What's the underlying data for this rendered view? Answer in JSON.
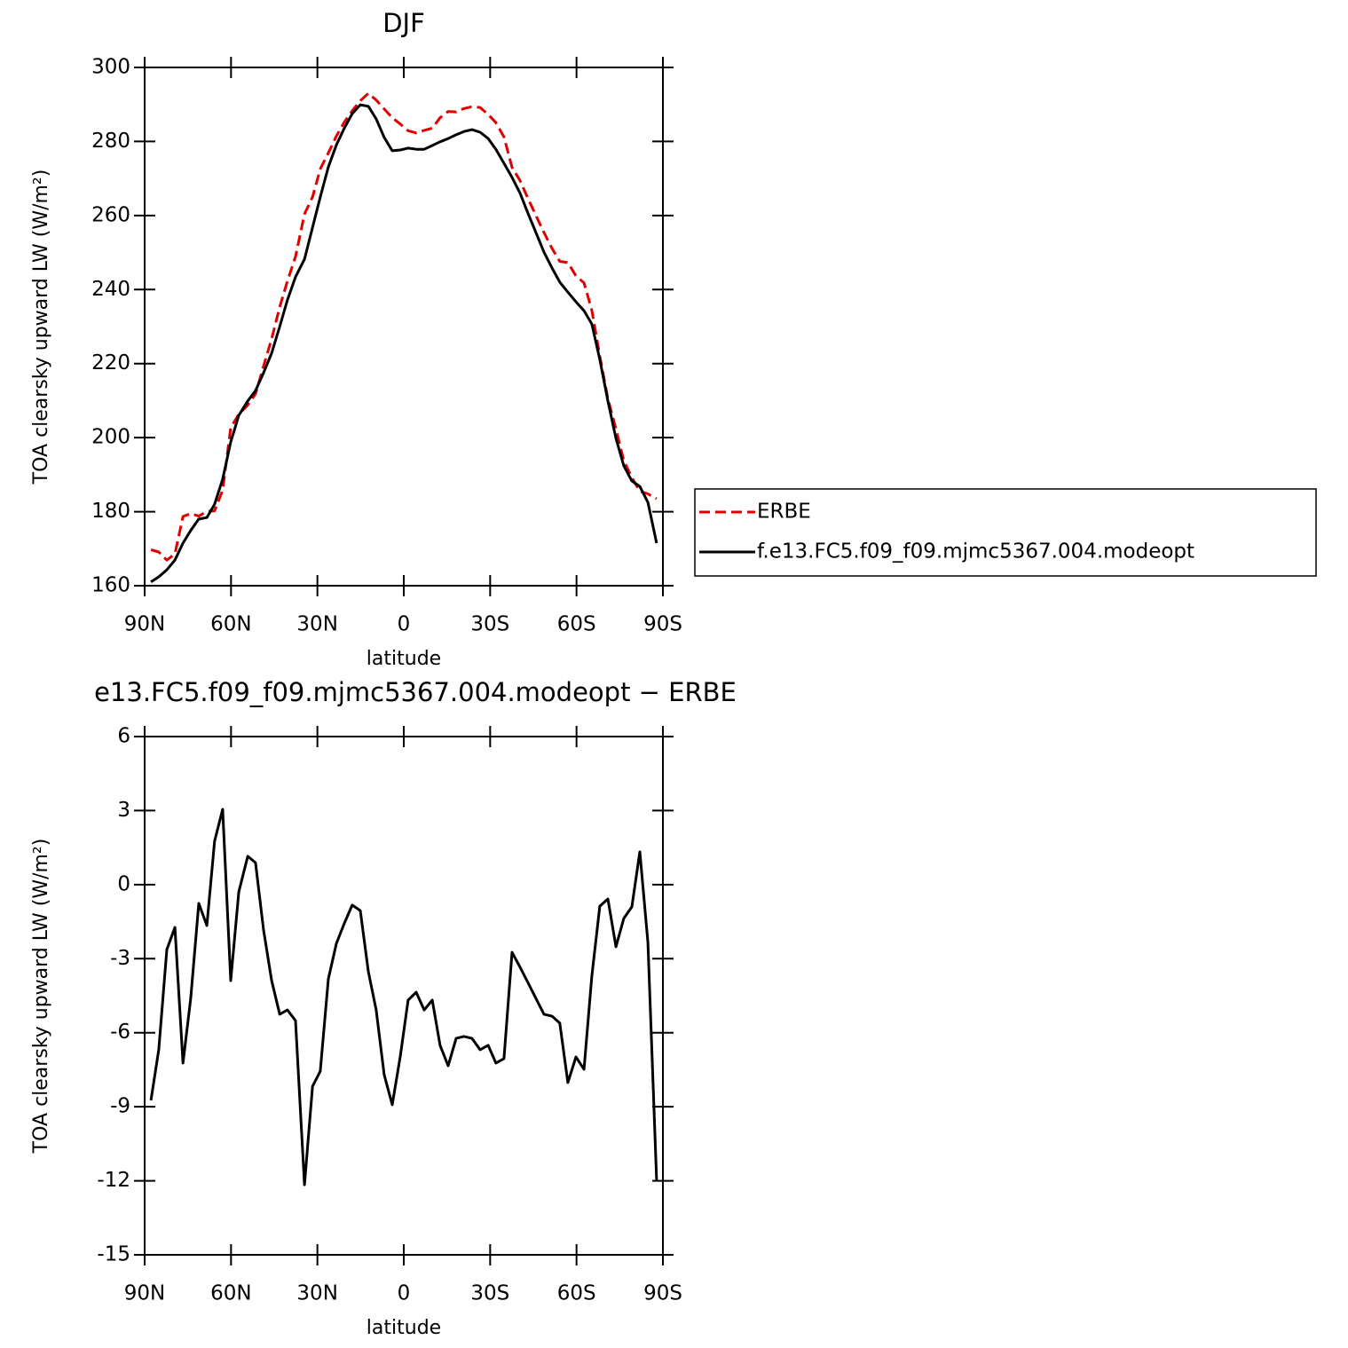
{
  "chart_data": [
    {
      "type": "line",
      "title": "DJF",
      "xlabel": "latitude",
      "ylabel": "TOA clearsky upward LW (W/m²)",
      "x": [
        87.8,
        85.1,
        82.3,
        79.5,
        76.7,
        74.0,
        71.2,
        68.4,
        65.7,
        62.9,
        60.1,
        57.3,
        54.2,
        51.5,
        48.7,
        45.9,
        43.1,
        40.4,
        37.6,
        34.5,
        31.7,
        29.0,
        26.2,
        23.4,
        20.6,
        17.9,
        15.1,
        12.3,
        9.6,
        6.8,
        4.0,
        1.2,
        -1.5,
        -4.3,
        -7.1,
        -9.9,
        -12.6,
        -15.4,
        -18.2,
        -20.9,
        -23.7,
        -26.5,
        -29.3,
        -32.0,
        -34.8,
        -37.6,
        -40.4,
        -43.1,
        -45.9,
        -48.7,
        -51.5,
        -54.2,
        -57.0,
        -59.8,
        -62.6,
        -65.3,
        -68.1,
        -70.9,
        -73.7,
        -76.4,
        -79.2,
        -82.0,
        -84.8,
        -87.8
      ],
      "series": [
        {
          "name": "ERBE",
          "color": "#e00000",
          "line_style": "dashed",
          "values": [
            169.7,
            169.1,
            166.9,
            168.6,
            178.7,
            179.5,
            178.8,
            180.1,
            180.2,
            185.8,
            202.7,
            206.3,
            208.8,
            211.8,
            219.3,
            226.7,
            235.3,
            242.3,
            248.9,
            260.4,
            265.0,
            272.6,
            276.9,
            281.5,
            285.3,
            288.3,
            291.0,
            293.0,
            291.2,
            288.8,
            286.4,
            284.7,
            282.9,
            282.3,
            283.0,
            283.6,
            286.4,
            288.1,
            288.0,
            288.9,
            289.4,
            289.2,
            287.3,
            285.1,
            281.2,
            273.0,
            269.4,
            264.7,
            260.0,
            255.4,
            251.1,
            247.6,
            247.3,
            243.7,
            241.8,
            234.4,
            222.0,
            210.5,
            202.3,
            193.8,
            189.2,
            185.5,
            184.8,
            183.5
          ]
        },
        {
          "name": "f.e13.FC5.f09_f09.mjmc5367.004.modeopt",
          "color": "#000000",
          "line_style": "solid",
          "values": [
            161.0,
            162.4,
            164.3,
            166.9,
            171.5,
            174.9,
            178.0,
            178.4,
            182.0,
            188.8,
            198.8,
            206.0,
            209.9,
            212.7,
            217.5,
            222.8,
            230.0,
            237.2,
            243.4,
            248.2,
            256.8,
            265.0,
            273.1,
            279.1,
            283.7,
            287.5,
            289.9,
            289.5,
            286.1,
            281.1,
            277.5,
            277.7,
            278.2,
            277.9,
            277.9,
            278.9,
            279.9,
            280.8,
            281.8,
            282.7,
            283.2,
            282.5,
            280.8,
            277.9,
            274.1,
            270.3,
            266.0,
            260.7,
            255.4,
            250.1,
            245.8,
            242.0,
            239.3,
            236.7,
            234.3,
            230.7,
            221.1,
            209.9,
            199.8,
            192.4,
            188.3,
            186.8,
            182.5,
            171.5
          ]
        }
      ],
      "xlim": [
        90,
        -90
      ],
      "xticks": [
        {
          "value": 90,
          "label": "90N"
        },
        {
          "value": 60,
          "label": "60N"
        },
        {
          "value": 30,
          "label": "30N"
        },
        0,
        {
          "value": -30,
          "label": "30S"
        },
        {
          "value": -60,
          "label": "60S"
        },
        {
          "value": -90,
          "label": "90S"
        }
      ],
      "ylim": [
        160,
        300
      ],
      "yticks": [
        160,
        180,
        200,
        220,
        240,
        260,
        280,
        300
      ],
      "legend": "right"
    },
    {
      "type": "line",
      "title": "e13.FC5.f09_f09.mjmc5367.004.modeopt − ERBE",
      "xlabel": "latitude",
      "ylabel": "TOA clearsky upward LW (W/m²)",
      "x": [
        87.8,
        85.1,
        82.3,
        79.5,
        76.7,
        74.0,
        71.2,
        68.4,
        65.7,
        62.9,
        60.1,
        57.3,
        54.2,
        51.5,
        48.7,
        45.9,
        43.1,
        40.4,
        37.6,
        34.5,
        31.7,
        29.0,
        26.2,
        23.4,
        20.6,
        17.9,
        15.1,
        12.3,
        9.6,
        6.8,
        4.0,
        1.2,
        -1.5,
        -4.3,
        -7.1,
        -9.9,
        -12.6,
        -15.4,
        -18.2,
        -20.9,
        -23.7,
        -26.5,
        -29.3,
        -32.0,
        -34.8,
        -37.6,
        -40.4,
        -43.1,
        -45.9,
        -48.7,
        -51.5,
        -54.2,
        -57.0,
        -59.8,
        -62.6,
        -65.3,
        -68.1,
        -70.9,
        -73.7,
        -76.4,
        -79.2,
        -82.0,
        -84.8,
        -87.8
      ],
      "color": "#000000",
      "values": [
        -8.74,
        -6.69,
        -2.63,
        -1.73,
        -7.23,
        -4.61,
        -0.76,
        -1.66,
        1.76,
        3.05,
        -3.89,
        -0.29,
        1.15,
        0.89,
        -1.84,
        -3.89,
        -5.25,
        -5.08,
        -5.51,
        -12.16,
        -8.17,
        -7.56,
        -3.82,
        -2.38,
        -1.55,
        -0.83,
        -1.05,
        -3.53,
        -5.08,
        -7.7,
        -8.92,
        -6.95,
        -4.68,
        -4.36,
        -5.08,
        -4.68,
        -6.51,
        -7.34,
        -6.23,
        -6.15,
        -6.23,
        -6.69,
        -6.51,
        -7.23,
        -7.05,
        -2.74,
        -3.35,
        -3.96,
        -4.61,
        -5.25,
        -5.33,
        -5.61,
        -8.02,
        -6.98,
        -7.48,
        -3.71,
        -0.87,
        -0.58,
        -2.52,
        -1.37,
        -0.9,
        1.33,
        -2.34,
        -11.98
      ],
      "xlim": [
        90,
        -90
      ],
      "xticks": [
        {
          "value": 90,
          "label": "90N"
        },
        {
          "value": 60,
          "label": "60N"
        },
        {
          "value": 30,
          "label": "30N"
        },
        0,
        {
          "value": -30,
          "label": "30S"
        },
        {
          "value": -60,
          "label": "60S"
        },
        {
          "value": -90,
          "label": "90S"
        }
      ],
      "ylim": [
        -15,
        6
      ],
      "yticks": [
        -15,
        -12,
        -9,
        -6,
        -3,
        0,
        3,
        6
      ]
    }
  ]
}
